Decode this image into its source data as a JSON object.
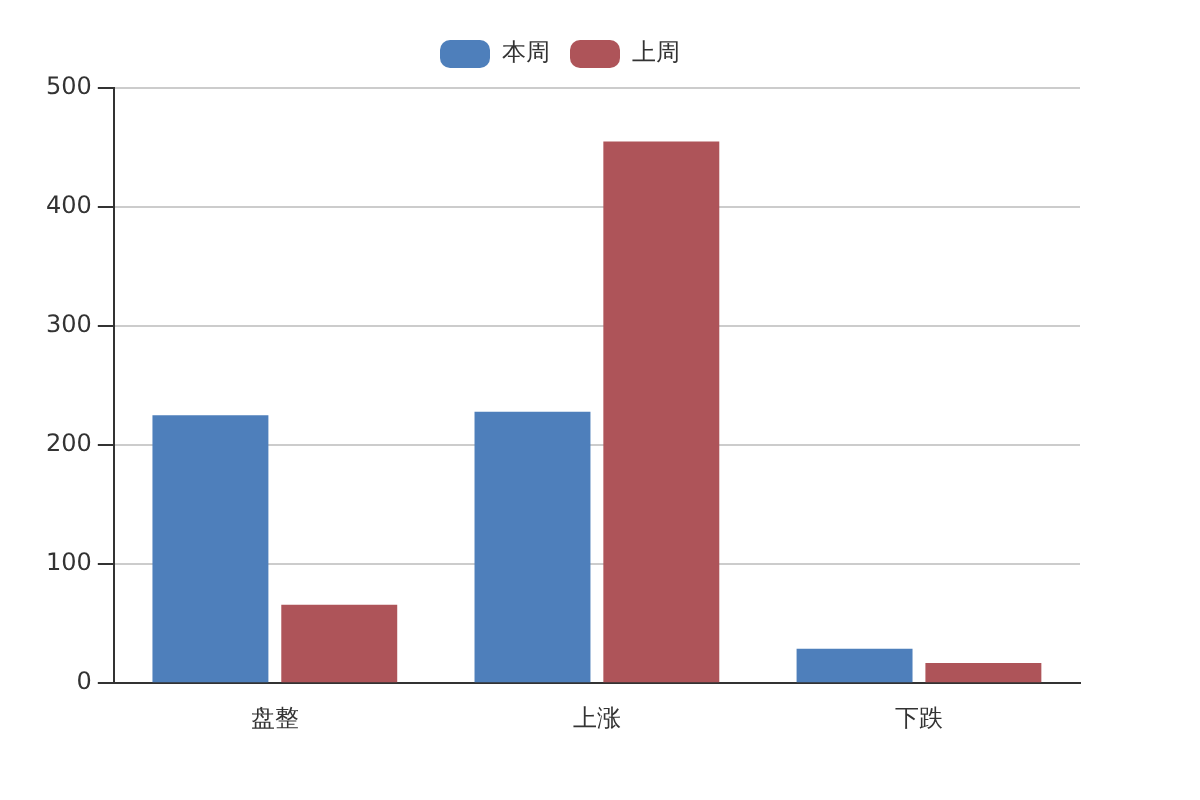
{
  "chart_data": {
    "type": "bar",
    "categories": [
      "盘整",
      "上涨",
      "下跌"
    ],
    "series": [
      {
        "name": "本周",
        "color": "#4e7fbb",
        "values": [
          225,
          228,
          29
        ]
      },
      {
        "name": "上周",
        "color": "#ae5459",
        "values": [
          66,
          455,
          17
        ]
      }
    ],
    "ylim": [
      0,
      500
    ],
    "yticks": [
      0,
      100,
      200,
      300,
      400,
      500
    ],
    "grid": "y",
    "legend": "top"
  }
}
